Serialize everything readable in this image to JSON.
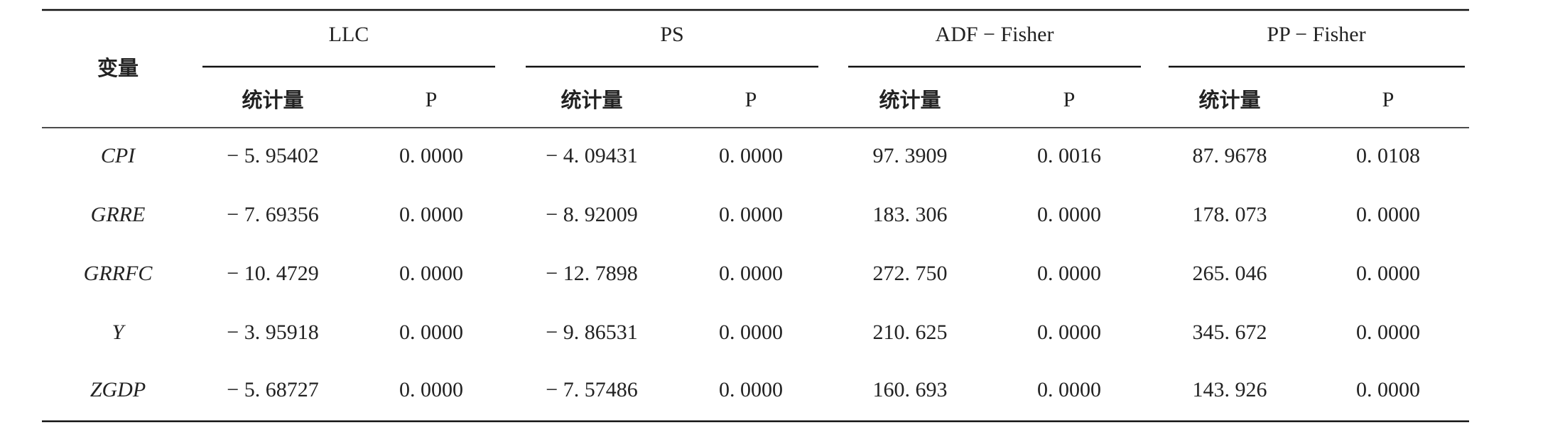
{
  "table": {
    "header": {
      "variable": "变量",
      "groups": [
        "LLC",
        "PS",
        "ADF − Fisher",
        "PP − Fisher"
      ],
      "subheaders": [
        "统计量",
        "P",
        "统计量",
        "P",
        "统计量",
        "P",
        "统计量",
        "P"
      ]
    },
    "rows": [
      [
        "CPI",
        "− 5. 95402",
        "0. 0000",
        "− 4. 09431",
        "0. 0000",
        "97. 3909",
        "0. 0016",
        "87. 9678",
        "0. 0108"
      ],
      [
        "GRRE",
        "− 7. 69356",
        "0. 0000",
        "− 8. 92009",
        "0. 0000",
        "183. 306",
        "0. 0000",
        "178. 073",
        "0. 0000"
      ],
      [
        "GRRFC",
        "− 10. 4729",
        "0. 0000",
        "− 12. 7898",
        "0. 0000",
        "272. 750",
        "0. 0000",
        "265. 046",
        "0. 0000"
      ],
      [
        "Y",
        "− 3. 95918",
        "0. 0000",
        "− 9. 86531",
        "0. 0000",
        "210. 625",
        "0. 0000",
        "345. 672",
        "0. 0000"
      ],
      [
        "ZGDP",
        "− 5. 68727",
        "0. 0000",
        "− 7. 57486",
        "0. 0000",
        "160. 693",
        "0. 0000",
        "143. 926",
        "0. 0000"
      ]
    ]
  }
}
